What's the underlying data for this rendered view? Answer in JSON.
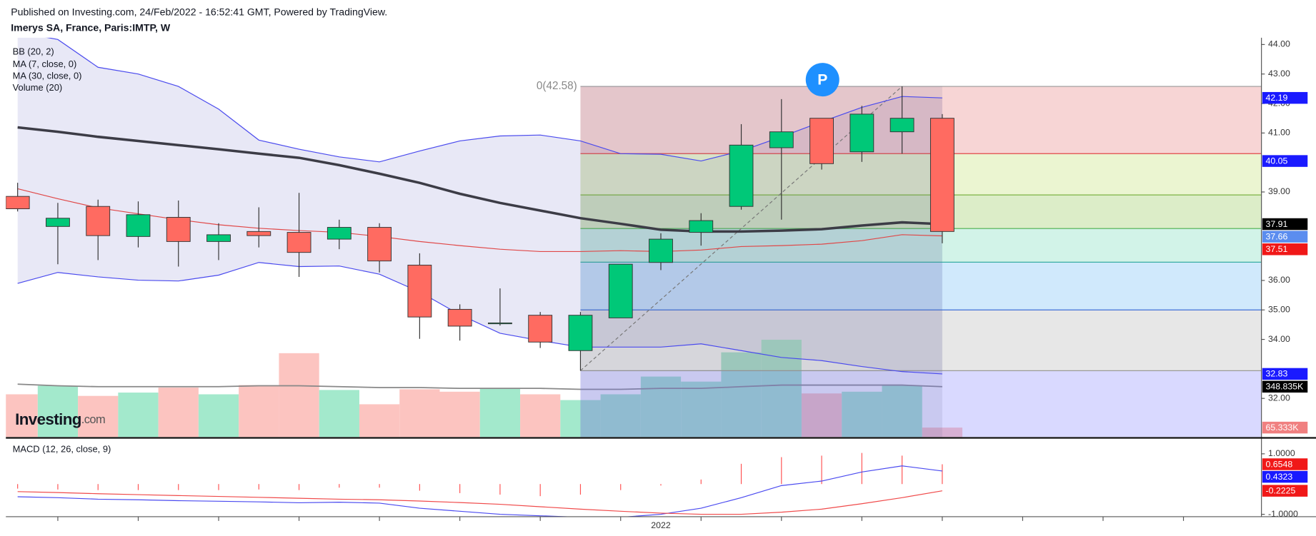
{
  "chart_data": {
    "type": "candlestick",
    "header": "Published on Investing.com, 24/Feb/2022 - 16:52:41 GMT, Powered by TradingView.",
    "title": "Imerys SA, France, Paris:IMTP, W",
    "logo": {
      "main": "Investing",
      "suffix": ".com"
    },
    "categories": [
      null,
      null,
      null,
      null,
      null,
      null,
      null,
      null,
      null,
      null,
      null,
      null,
      null,
      null,
      null,
      null,
      "2022",
      null,
      null,
      null,
      null,
      null,
      null,
      null
    ],
    "open": [
      38.85,
      37.83,
      38.51,
      37.49,
      38.14,
      37.32,
      37.66,
      37.63,
      37.4,
      37.8,
      36.52,
      35.02,
      34.53,
      34.82,
      33.62,
      34.73,
      36.61,
      37.63,
      38.51,
      40.5,
      41.5,
      40.36,
      41.04,
      41.5
    ],
    "high": [
      39.31,
      38.63,
      38.74,
      38.68,
      38.71,
      37.94,
      38.48,
      38.97,
      38.06,
      37.94,
      36.92,
      35.19,
      35.73,
      34.93,
      34.93,
      36.55,
      37.6,
      38.28,
      41.3,
      42.15,
      41.5,
      41.92,
      42.58,
      41.64
    ],
    "low": [
      38.34,
      36.55,
      36.69,
      37.12,
      36.47,
      36.69,
      37.12,
      36.12,
      37.06,
      36.27,
      34.02,
      33.96,
      34.47,
      33.71,
      32.94,
      34.73,
      36.35,
      37.18,
      38.4,
      38.06,
      39.76,
      40.02,
      40.3,
      37.26
    ],
    "close": [
      38.43,
      38.11,
      37.52,
      38.23,
      37.32,
      37.55,
      37.52,
      36.95,
      37.8,
      36.66,
      34.76,
      34.45,
      34.56,
      33.91,
      34.82,
      36.55,
      37.4,
      38.03,
      40.59,
      41.04,
      39.96,
      41.64,
      41.5,
      37.66
    ],
    "up_color": "#00c878",
    "down_color": "#ff6b61",
    "ylim": [
      30.69,
      44.23
    ],
    "yticks": [
      {
        "value": 44,
        "label": "44.00"
      },
      {
        "value": 43,
        "label": "43.00"
      },
      {
        "value": 42,
        "label": "42.00"
      },
      {
        "value": 41,
        "label": "41.00"
      },
      {
        "value": 39,
        "label": "39.00"
      },
      {
        "value": 36,
        "label": "36.00"
      },
      {
        "value": 35,
        "label": "35.00"
      },
      {
        "value": 34,
        "label": "34.00"
      },
      {
        "value": 32,
        "label": "32.00"
      }
    ],
    "legend": [
      "BB (20, 2)",
      "MA (7, close, 0)",
      "MA (30, close, 0)",
      "Volume (20)"
    ],
    "bb": {
      "color": "#4a4aee",
      "fill": "rgba(120,120,200,0.17)",
      "upper": [
        44.43,
        44.17,
        43.23,
        43.0,
        42.58,
        41.81,
        40.76,
        40.45,
        40.19,
        40.02,
        40.39,
        40.73,
        40.9,
        40.93,
        40.73,
        40.3,
        40.28,
        40.05,
        40.39,
        40.87,
        41.38,
        41.87,
        42.24,
        42.19
      ],
      "lower": [
        35.9,
        36.27,
        36.12,
        36.01,
        35.98,
        36.18,
        36.61,
        36.47,
        36.49,
        36.21,
        35.61,
        34.84,
        34.21,
        33.96,
        33.74,
        33.74,
        33.74,
        33.85,
        33.62,
        33.39,
        33.28,
        33.08,
        32.91,
        32.83
      ]
    },
    "ma7": {
      "color": "#e04848",
      "values": [
        39.11,
        38.77,
        38.46,
        38.26,
        38.06,
        37.89,
        37.77,
        37.69,
        37.63,
        37.49,
        37.32,
        37.18,
        37.06,
        36.98,
        36.98,
        37.01,
        36.98,
        37.03,
        37.15,
        37.18,
        37.23,
        37.35,
        37.55,
        37.51
      ]
    },
    "ma30": {
      "color": "#3c3c46",
      "values": [
        41.19,
        41.04,
        40.87,
        40.73,
        40.59,
        40.45,
        40.3,
        40.16,
        39.91,
        39.62,
        39.31,
        38.94,
        38.63,
        38.37,
        38.11,
        37.92,
        37.72,
        37.66,
        37.66,
        37.69,
        37.74,
        37.86,
        37.97,
        37.91
      ]
    },
    "volume": {
      "ylim": [
        0,
        2767000
      ],
      "up_color": "#a3e9cc",
      "down_color": "#fcc4c0",
      "ma_color": "#888888",
      "values": [
        296000,
        355000,
        285000,
        308000,
        343000,
        296000,
        360000,
        581000,
        326000,
        227000,
        331000,
        314000,
        337000,
        296000,
        256000,
        296000,
        419000,
        384000,
        587000,
        674000,
        302000,
        314000,
        355000,
        65333
      ],
      "ma": [
        366000,
        355000,
        349000,
        349000,
        349000,
        349000,
        355000,
        355000,
        349000,
        343000,
        343000,
        337000,
        337000,
        337000,
        331000,
        331000,
        337000,
        337000,
        349000,
        360000,
        360000,
        360000,
        360000,
        348835
      ]
    },
    "fib": {
      "label": "0(42.58)",
      "levels": [
        42.58,
        40.3,
        38.9,
        37.76,
        36.62,
        35.0,
        32.94
      ],
      "level_colors": [
        "#999999",
        "#e04848",
        "#7cb342",
        "#4caf50",
        "#26a69a",
        "#3f6fd8",
        "#999999"
      ],
      "zone_colors": [
        "rgba(229,115,115,0.30)",
        "rgba(197,225,122,0.35)",
        "rgba(139,195,74,0.30)",
        "rgba(77,208,165,0.25)",
        "rgba(100,181,246,0.30)",
        "rgba(176,176,176,0.30)",
        "rgba(128,128,255,0.30)"
      ]
    },
    "price_badges": [
      {
        "value": 42.19,
        "label": "42.19",
        "color": "#1a1aff"
      },
      {
        "value": 40.05,
        "label": "40.05",
        "color": "#1a1aff"
      },
      {
        "value": 37.91,
        "label": "37.91",
        "color": "#000000"
      },
      {
        "value": 37.66,
        "label": "37.66",
        "color": "#5b8def"
      },
      {
        "value": 37.51,
        "label": "37.51",
        "color": "#f01818"
      },
      {
        "value": 32.83,
        "label": "32.83",
        "color": "#1a1aff"
      }
    ],
    "volume_badges": [
      {
        "value": 348835,
        "label": "348.835K",
        "color": "#000000"
      },
      {
        "value": 65333,
        "label": "65.333K",
        "color": "#f08080"
      }
    ],
    "macd": {
      "name": "MACD (12, 26, close, 9)",
      "ylim": [
        -1.08,
        1.5
      ],
      "yticks": [
        {
          "value": 1,
          "label": "1.0000"
        },
        {
          "value": -1,
          "label": "-1.0000"
        }
      ],
      "hist_color": "#ff5252",
      "macd_color": "#4a4af0",
      "signal_color": "#f04a4a",
      "hist": [
        -0.15,
        -0.18,
        -0.2,
        -0.2,
        -0.2,
        -0.2,
        -0.18,
        -0.2,
        -0.12,
        -0.12,
        -0.22,
        -0.3,
        -0.35,
        -0.4,
        -0.35,
        -0.2,
        -0.05,
        0.15,
        0.67,
        0.89,
        0.94,
        1.03,
        0.94,
        0.6548
      ],
      "macd": [
        -0.42,
        -0.45,
        -0.5,
        -0.52,
        -0.55,
        -0.57,
        -0.59,
        -0.62,
        -0.6,
        -0.63,
        -0.8,
        -0.9,
        -1,
        -1.05,
        -1.1,
        -1.1,
        -1.0,
        -0.8,
        -0.45,
        -0.05,
        0.1,
        0.4,
        0.6,
        0.4323
      ],
      "signal": [
        -0.25,
        -0.28,
        -0.32,
        -0.35,
        -0.38,
        -0.41,
        -0.44,
        -0.47,
        -0.5,
        -0.52,
        -0.56,
        -0.61,
        -0.67,
        -0.75,
        -0.83,
        -0.9,
        -0.96,
        -1.0,
        -1.0,
        -0.93,
        -0.83,
        -0.65,
        -0.45,
        -0.2225
      ],
      "badges": [
        {
          "value": 0.6548,
          "label": "0.6548",
          "color": "#f01818"
        },
        {
          "value": 0.4323,
          "label": "0.4323",
          "color": "#1a1aff"
        },
        {
          "value": -0.2225,
          "label": "-0.2225",
          "color": "#f01818"
        }
      ]
    }
  }
}
